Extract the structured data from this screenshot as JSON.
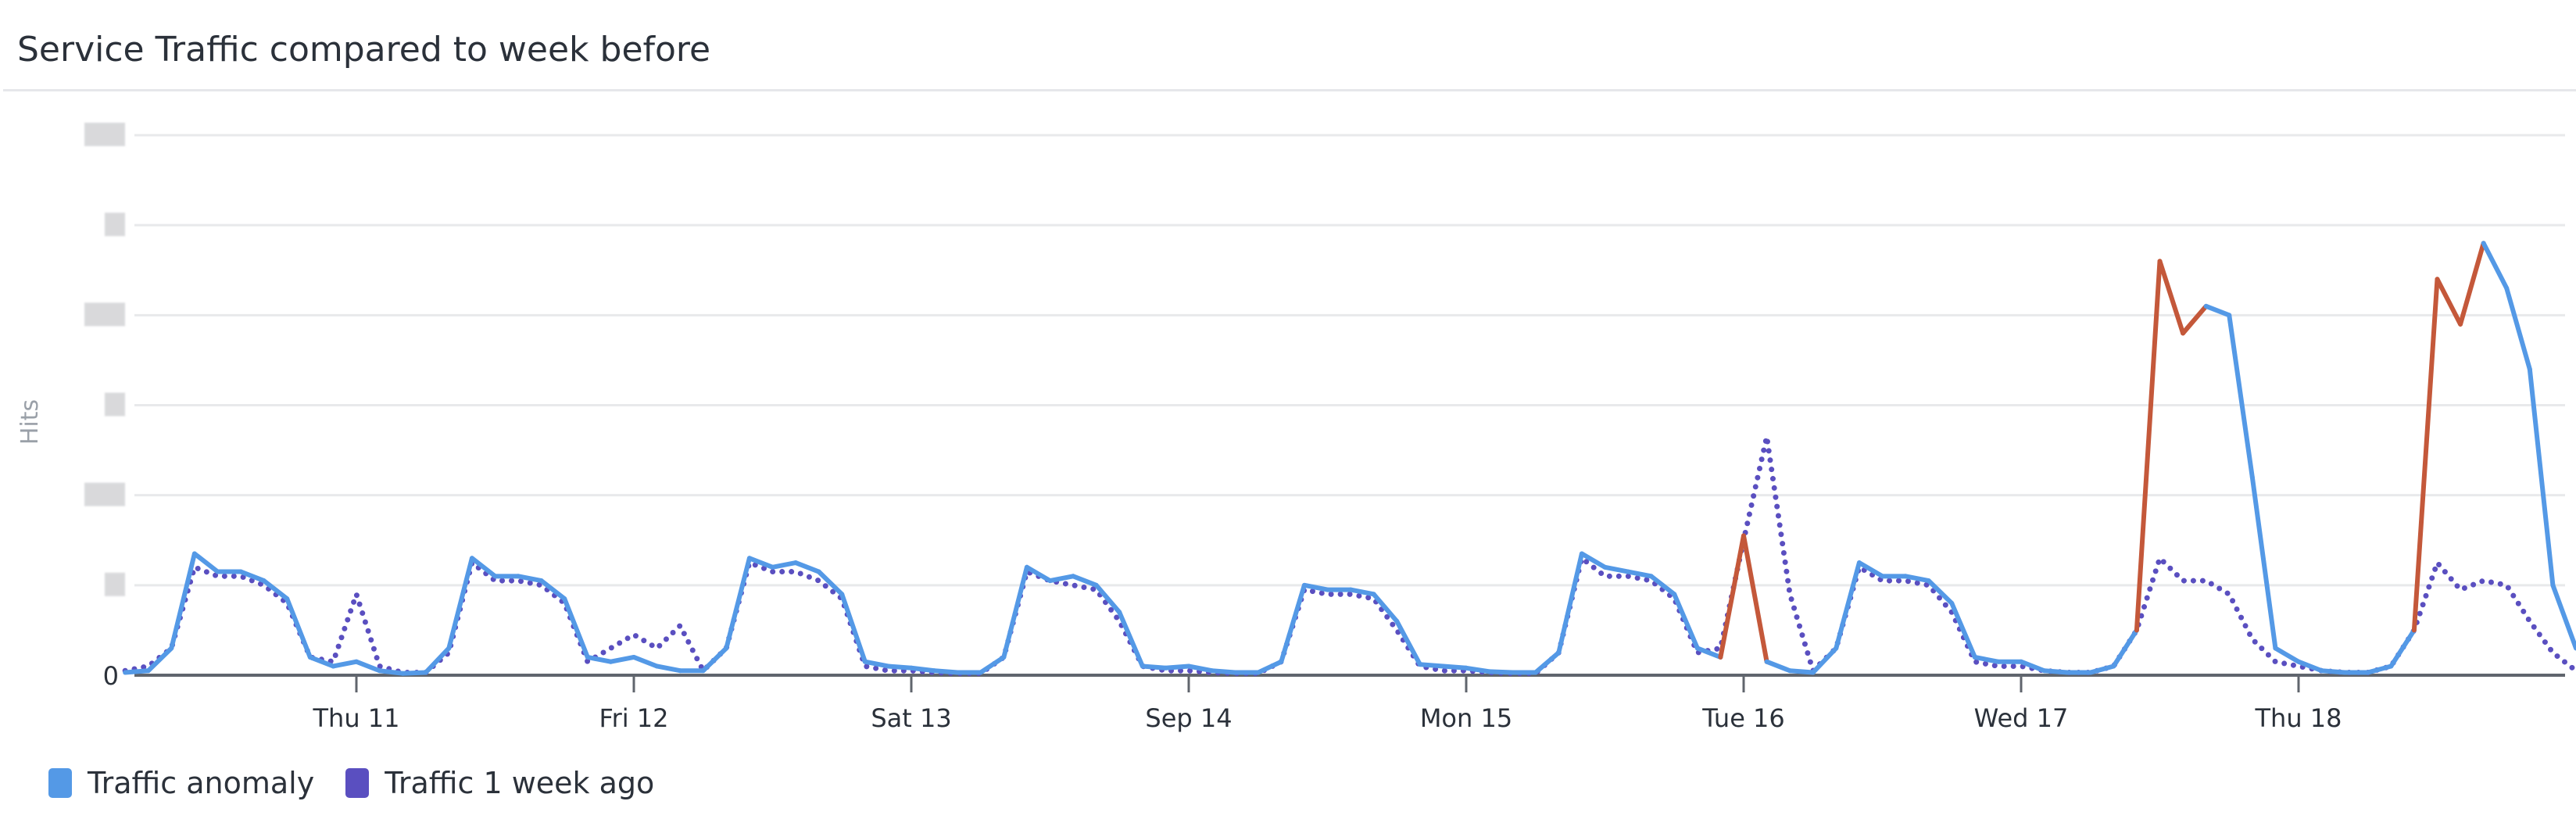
{
  "title": "Service Traffic compared to week before",
  "chart_data": {
    "type": "line",
    "title": "Service Traffic compared to week before",
    "ylabel": "Hits",
    "xlabel": "",
    "y_tick_labels": [
      "0"
    ],
    "y_tick_labels_redacted": true,
    "ylim": [
      0,
      6
    ],
    "grid": true,
    "legend_placement": "bottom-left",
    "x_ticks": [
      {
        "label": "Thu 11",
        "at": "Sep 11 00:00"
      },
      {
        "label": "Fri 12",
        "at": "Sep 12 00:00"
      },
      {
        "label": "Sat 13",
        "at": "Sep 13 00:00"
      },
      {
        "label": "Sep 14",
        "at": "Sep 14 00:00"
      },
      {
        "label": "Mon 15",
        "at": "Sep 15 00:00"
      },
      {
        "label": "Tue 16",
        "at": "Sep 16 00:00"
      },
      {
        "label": "Wed 17",
        "at": "Sep 17 00:00"
      },
      {
        "label": "Thu 18",
        "at": "Sep 18 00:00"
      }
    ],
    "x": [
      "Sep 10 04:00",
      "Sep 10 06:00",
      "Sep 10 08:00",
      "Sep 10 10:00",
      "Sep 10 12:00",
      "Sep 10 14:00",
      "Sep 10 16:00",
      "Sep 10 18:00",
      "Sep 10 20:00",
      "Sep 10 22:00",
      "Sep 11 00:00",
      "Sep 11 02:00",
      "Sep 11 04:00",
      "Sep 11 06:00",
      "Sep 11 08:00",
      "Sep 11 10:00",
      "Sep 11 12:00",
      "Sep 11 14:00",
      "Sep 11 16:00",
      "Sep 11 18:00",
      "Sep 11 20:00",
      "Sep 11 22:00",
      "Sep 12 00:00",
      "Sep 12 02:00",
      "Sep 12 04:00",
      "Sep 12 06:00",
      "Sep 12 08:00",
      "Sep 12 10:00",
      "Sep 12 12:00",
      "Sep 12 14:00",
      "Sep 12 16:00",
      "Sep 12 18:00",
      "Sep 12 20:00",
      "Sep 12 22:00",
      "Sep 13 00:00",
      "Sep 13 02:00",
      "Sep 13 04:00",
      "Sep 13 06:00",
      "Sep 13 08:00",
      "Sep 13 10:00",
      "Sep 13 12:00",
      "Sep 13 14:00",
      "Sep 13 16:00",
      "Sep 13 18:00",
      "Sep 13 20:00",
      "Sep 13 22:00",
      "Sep 14 00:00",
      "Sep 14 02:00",
      "Sep 14 04:00",
      "Sep 14 06:00",
      "Sep 14 08:00",
      "Sep 14 10:00",
      "Sep 14 12:00",
      "Sep 14 14:00",
      "Sep 14 16:00",
      "Sep 14 18:00",
      "Sep 14 20:00",
      "Sep 14 22:00",
      "Sep 15 00:00",
      "Sep 15 02:00",
      "Sep 15 04:00",
      "Sep 15 06:00",
      "Sep 15 08:00",
      "Sep 15 10:00",
      "Sep 15 12:00",
      "Sep 15 14:00",
      "Sep 15 16:00",
      "Sep 15 18:00",
      "Sep 15 20:00",
      "Sep 15 22:00",
      "Sep 16 00:00",
      "Sep 16 02:00",
      "Sep 16 04:00",
      "Sep 16 06:00",
      "Sep 16 08:00",
      "Sep 16 10:00",
      "Sep 16 12:00",
      "Sep 16 14:00",
      "Sep 16 16:00",
      "Sep 16 18:00",
      "Sep 16 20:00",
      "Sep 16 22:00",
      "Sep 17 00:00",
      "Sep 17 02:00",
      "Sep 17 04:00",
      "Sep 17 06:00",
      "Sep 17 08:00",
      "Sep 17 10:00",
      "Sep 17 12:00",
      "Sep 17 14:00",
      "Sep 17 16:00",
      "Sep 17 18:00",
      "Sep 17 20:00",
      "Sep 17 22:00",
      "Sep 18 00:00",
      "Sep 18 02:00",
      "Sep 18 04:00",
      "Sep 18 06:00",
      "Sep 18 08:00",
      "Sep 18 10:00",
      "Sep 18 12:00",
      "Sep 18 14:00",
      "Sep 18 16:00",
      "Sep 18 18:00",
      "Sep 18 20:00",
      "Sep 18 22:00",
      "Sep 19 00:00"
    ],
    "series": [
      {
        "name": "Traffic anomaly",
        "color": "#5499e6",
        "style": "solid",
        "anomaly_color": "#c4583a",
        "anomaly_ranges": [
          [
            "Sep 15 23:00",
            "Sep 16 01:00"
          ],
          [
            "Sep 17 10:00",
            "Sep 17 16:00"
          ],
          [
            "Sep 18 10:00",
            "Sep 18 16:00"
          ]
        ],
        "values": [
          0.03,
          0.05,
          0.3,
          1.35,
          1.15,
          1.15,
          1.05,
          0.85,
          0.2,
          0.1,
          0.15,
          0.05,
          0.02,
          0.03,
          0.3,
          1.3,
          1.1,
          1.1,
          1.05,
          0.85,
          0.2,
          0.15,
          0.2,
          0.1,
          0.05,
          0.05,
          0.3,
          1.3,
          1.2,
          1.25,
          1.15,
          0.9,
          0.15,
          0.1,
          0.08,
          0.05,
          0.03,
          0.03,
          0.2,
          1.2,
          1.05,
          1.1,
          1.0,
          0.7,
          0.1,
          0.08,
          0.1,
          0.05,
          0.03,
          0.03,
          0.15,
          1.0,
          0.95,
          0.95,
          0.9,
          0.6,
          0.12,
          0.1,
          0.08,
          0.04,
          0.03,
          0.03,
          0.25,
          1.35,
          1.2,
          1.15,
          1.1,
          0.9,
          0.3,
          0.2,
          1.55,
          0.15,
          0.05,
          0.03,
          0.3,
          1.25,
          1.1,
          1.1,
          1.05,
          0.8,
          0.2,
          0.15,
          0.15,
          0.05,
          0.03,
          0.03,
          0.1,
          0.5,
          4.6,
          3.8,
          4.1,
          4.0,
          2.2,
          0.3,
          0.15,
          0.05,
          0.03,
          0.03,
          0.1,
          0.5,
          4.4,
          3.9,
          4.8,
          4.3,
          3.4,
          1.0,
          0.3
        ]
      },
      {
        "name": "Traffic 1 week ago",
        "color": "#5a4fc0",
        "style": "dotted",
        "values": [
          0.05,
          0.1,
          0.3,
          1.2,
          1.1,
          1.1,
          1.0,
          0.8,
          0.2,
          0.15,
          0.9,
          0.1,
          0.03,
          0.03,
          0.25,
          1.25,
          1.05,
          1.05,
          1.0,
          0.8,
          0.15,
          0.3,
          0.45,
          0.3,
          0.55,
          0.05,
          0.3,
          1.25,
          1.15,
          1.15,
          1.05,
          0.85,
          0.1,
          0.05,
          0.05,
          0.03,
          0.02,
          0.02,
          0.2,
          1.15,
          1.05,
          1.0,
          0.95,
          0.6,
          0.1,
          0.05,
          0.05,
          0.03,
          0.02,
          0.02,
          0.15,
          0.95,
          0.9,
          0.9,
          0.85,
          0.5,
          0.1,
          0.05,
          0.05,
          0.03,
          0.02,
          0.02,
          0.25,
          1.3,
          1.1,
          1.1,
          1.05,
          0.85,
          0.25,
          0.3,
          1.5,
          2.65,
          0.9,
          0.05,
          0.3,
          1.2,
          1.05,
          1.05,
          1.0,
          0.7,
          0.15,
          0.1,
          0.1,
          0.05,
          0.03,
          0.03,
          0.1,
          0.5,
          1.3,
          1.05,
          1.05,
          0.9,
          0.4,
          0.15,
          0.1,
          0.05,
          0.03,
          0.03,
          0.1,
          0.5,
          1.25,
          0.95,
          1.05,
          1.0,
          0.6,
          0.25,
          0.05
        ]
      }
    ]
  }
}
